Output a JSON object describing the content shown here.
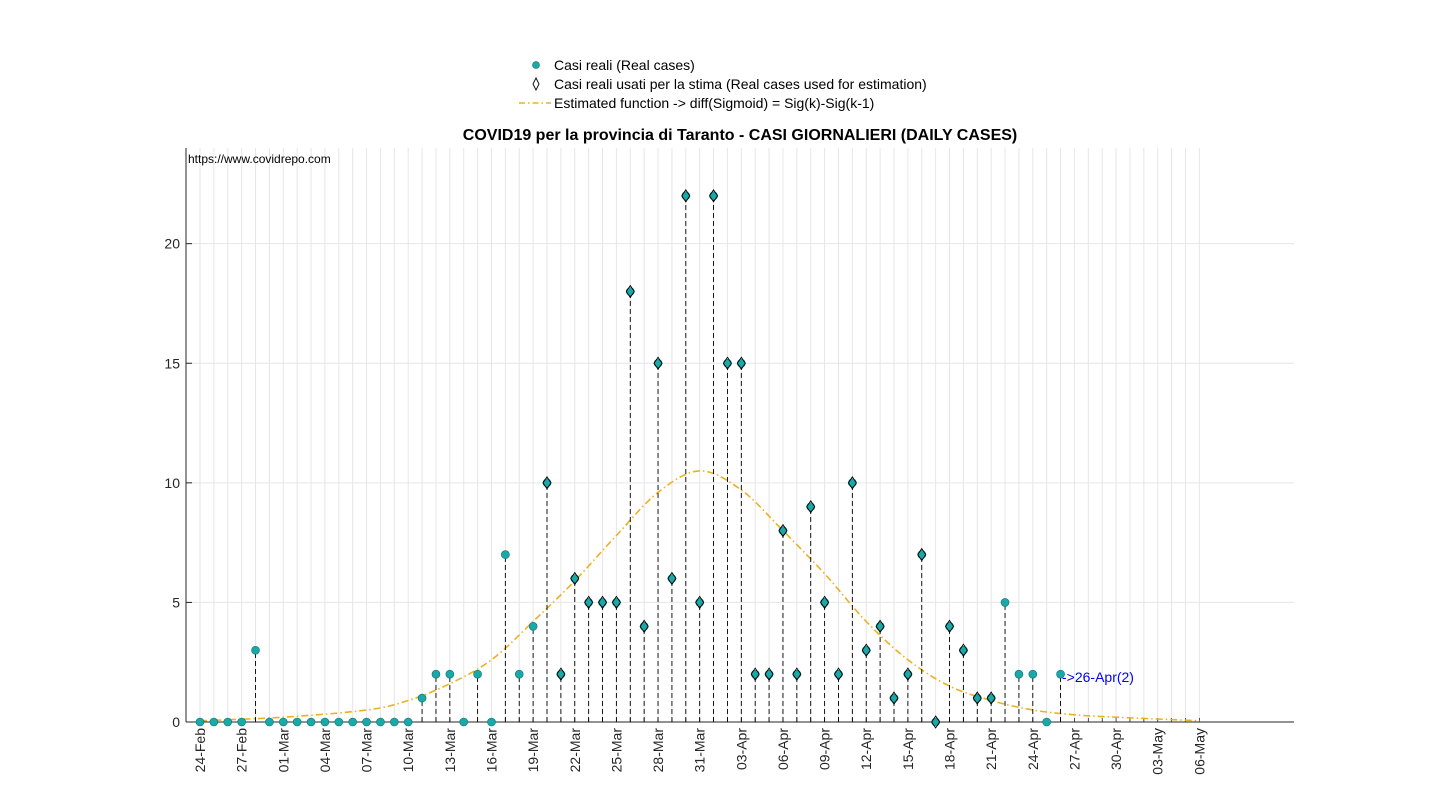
{
  "chart_data": {
    "type": "scatter",
    "title": "COVID19 per la provincia di Taranto - CASI GIORNALIERI (DAILY CASES)",
    "source_label": "https://www.covidrepo.com",
    "xlabel": "",
    "ylabel": "",
    "ylim": [
      0,
      24
    ],
    "yticks": [
      0,
      5,
      10,
      15,
      20
    ],
    "grid": true,
    "legend_position": "top-center",
    "legend": [
      {
        "name": "Casi reali (Real cases)",
        "marker": "circle",
        "color": "#19a9a9"
      },
      {
        "name": "Casi reali usati per la stima (Real cases used for estimation)",
        "marker": "diamond",
        "color": "#000000"
      },
      {
        "name": "Estimated function -> diff(Sigmoid) = Sig(k)-Sig(k-1)",
        "marker": "dash-dot-line",
        "color": "#EDB120"
      }
    ],
    "x_start_date": "2020-02-24",
    "x_end_date": "2020-05-06",
    "xtick_labels": [
      "24-Feb",
      "27-Feb",
      "01-Mar",
      "04-Mar",
      "07-Mar",
      "10-Mar",
      "13-Mar",
      "16-Mar",
      "19-Mar",
      "22-Mar",
      "25-Mar",
      "28-Mar",
      "31-Mar",
      "03-Apr",
      "06-Apr",
      "09-Apr",
      "12-Apr",
      "15-Apr",
      "18-Apr",
      "21-Apr",
      "24-Apr",
      "27-Apr",
      "30-Apr",
      "03-May",
      "06-May"
    ],
    "daily_cases": [
      {
        "date": "2020-02-24",
        "cases": 0
      },
      {
        "date": "2020-02-25",
        "cases": 0
      },
      {
        "date": "2020-02-26",
        "cases": 0
      },
      {
        "date": "2020-02-27",
        "cases": 0
      },
      {
        "date": "2020-02-28",
        "cases": 3
      },
      {
        "date": "2020-02-29",
        "cases": 0
      },
      {
        "date": "2020-03-01",
        "cases": 0
      },
      {
        "date": "2020-03-02",
        "cases": 0
      },
      {
        "date": "2020-03-03",
        "cases": 0
      },
      {
        "date": "2020-03-04",
        "cases": 0
      },
      {
        "date": "2020-03-05",
        "cases": 0
      },
      {
        "date": "2020-03-06",
        "cases": 0
      },
      {
        "date": "2020-03-07",
        "cases": 0
      },
      {
        "date": "2020-03-08",
        "cases": 0
      },
      {
        "date": "2020-03-09",
        "cases": 0
      },
      {
        "date": "2020-03-10",
        "cases": 0
      },
      {
        "date": "2020-03-11",
        "cases": 1
      },
      {
        "date": "2020-03-12",
        "cases": 2
      },
      {
        "date": "2020-03-13",
        "cases": 2
      },
      {
        "date": "2020-03-14",
        "cases": 0
      },
      {
        "date": "2020-03-15",
        "cases": 2
      },
      {
        "date": "2020-03-16",
        "cases": 0
      },
      {
        "date": "2020-03-17",
        "cases": 7
      },
      {
        "date": "2020-03-18",
        "cases": 2
      },
      {
        "date": "2020-03-19",
        "cases": 4
      },
      {
        "date": "2020-03-20",
        "cases": 10,
        "used": true
      },
      {
        "date": "2020-03-21",
        "cases": 2,
        "used": true
      },
      {
        "date": "2020-03-22",
        "cases": 6,
        "used": true
      },
      {
        "date": "2020-03-23",
        "cases": 5,
        "used": true
      },
      {
        "date": "2020-03-24",
        "cases": 5,
        "used": true
      },
      {
        "date": "2020-03-25",
        "cases": 5,
        "used": true
      },
      {
        "date": "2020-03-26",
        "cases": 18,
        "used": true
      },
      {
        "date": "2020-03-27",
        "cases": 4,
        "used": true
      },
      {
        "date": "2020-03-28",
        "cases": 15,
        "used": true
      },
      {
        "date": "2020-03-29",
        "cases": 6,
        "used": true
      },
      {
        "date": "2020-03-30",
        "cases": 22,
        "used": true
      },
      {
        "date": "2020-03-31",
        "cases": 5,
        "used": true
      },
      {
        "date": "2020-04-01",
        "cases": 22,
        "used": true
      },
      {
        "date": "2020-04-02",
        "cases": 15,
        "used": true
      },
      {
        "date": "2020-04-03",
        "cases": 15,
        "used": true
      },
      {
        "date": "2020-04-04",
        "cases": 2,
        "used": true
      },
      {
        "date": "2020-04-05",
        "cases": 2,
        "used": true
      },
      {
        "date": "2020-04-06",
        "cases": 8,
        "used": true
      },
      {
        "date": "2020-04-07",
        "cases": 2,
        "used": true
      },
      {
        "date": "2020-04-08",
        "cases": 9,
        "used": true
      },
      {
        "date": "2020-04-09",
        "cases": 5,
        "used": true
      },
      {
        "date": "2020-04-10",
        "cases": 2,
        "used": true
      },
      {
        "date": "2020-04-11",
        "cases": 10,
        "used": true
      },
      {
        "date": "2020-04-12",
        "cases": 3,
        "used": true
      },
      {
        "date": "2020-04-13",
        "cases": 4,
        "used": true
      },
      {
        "date": "2020-04-14",
        "cases": 1,
        "used": true
      },
      {
        "date": "2020-04-15",
        "cases": 2,
        "used": true
      },
      {
        "date": "2020-04-16",
        "cases": 7,
        "used": true
      },
      {
        "date": "2020-04-17",
        "cases": 0,
        "used": true
      },
      {
        "date": "2020-04-18",
        "cases": 4,
        "used": true
      },
      {
        "date": "2020-04-19",
        "cases": 3,
        "used": true
      },
      {
        "date": "2020-04-20",
        "cases": 1,
        "used": true
      },
      {
        "date": "2020-04-21",
        "cases": 1,
        "used": true
      },
      {
        "date": "2020-04-22",
        "cases": 5
      },
      {
        "date": "2020-04-23",
        "cases": 2
      },
      {
        "date": "2020-04-24",
        "cases": 2
      },
      {
        "date": "2020-04-25",
        "cases": 0
      },
      {
        "date": "2020-04-26",
        "cases": 2
      }
    ],
    "estimated_function": {
      "name": "Estimated function -> diff(Sigmoid) = Sig(k)-Sig(k-1)",
      "peak_date": "2020-03-31",
      "peak_value": 10.5,
      "points": [
        {
          "date": "2020-02-24",
          "value": 0.05
        },
        {
          "date": "2020-03-01",
          "value": 0.2
        },
        {
          "date": "2020-03-07",
          "value": 0.5
        },
        {
          "date": "2020-03-10",
          "value": 0.9
        },
        {
          "date": "2020-03-13",
          "value": 1.6
        },
        {
          "date": "2020-03-16",
          "value": 2.6
        },
        {
          "date": "2020-03-19",
          "value": 4.2
        },
        {
          "date": "2020-03-22",
          "value": 5.9
        },
        {
          "date": "2020-03-25",
          "value": 7.8
        },
        {
          "date": "2020-03-28",
          "value": 9.6
        },
        {
          "date": "2020-03-31",
          "value": 10.5
        },
        {
          "date": "2020-04-03",
          "value": 9.7
        },
        {
          "date": "2020-04-06",
          "value": 8.0
        },
        {
          "date": "2020-04-09",
          "value": 6.2
        },
        {
          "date": "2020-04-12",
          "value": 4.2
        },
        {
          "date": "2020-04-15",
          "value": 2.6
        },
        {
          "date": "2020-04-18",
          "value": 1.5
        },
        {
          "date": "2020-04-21",
          "value": 0.9
        },
        {
          "date": "2020-04-24",
          "value": 0.5
        },
        {
          "date": "2020-04-27",
          "value": 0.3
        },
        {
          "date": "2020-04-30",
          "value": 0.2
        },
        {
          "date": "2020-05-06",
          "value": 0.05
        }
      ]
    },
    "annotation": {
      "text": "->26-Apr(2)",
      "date": "2020-04-26",
      "value": 2,
      "color": "#0000ff"
    }
  }
}
